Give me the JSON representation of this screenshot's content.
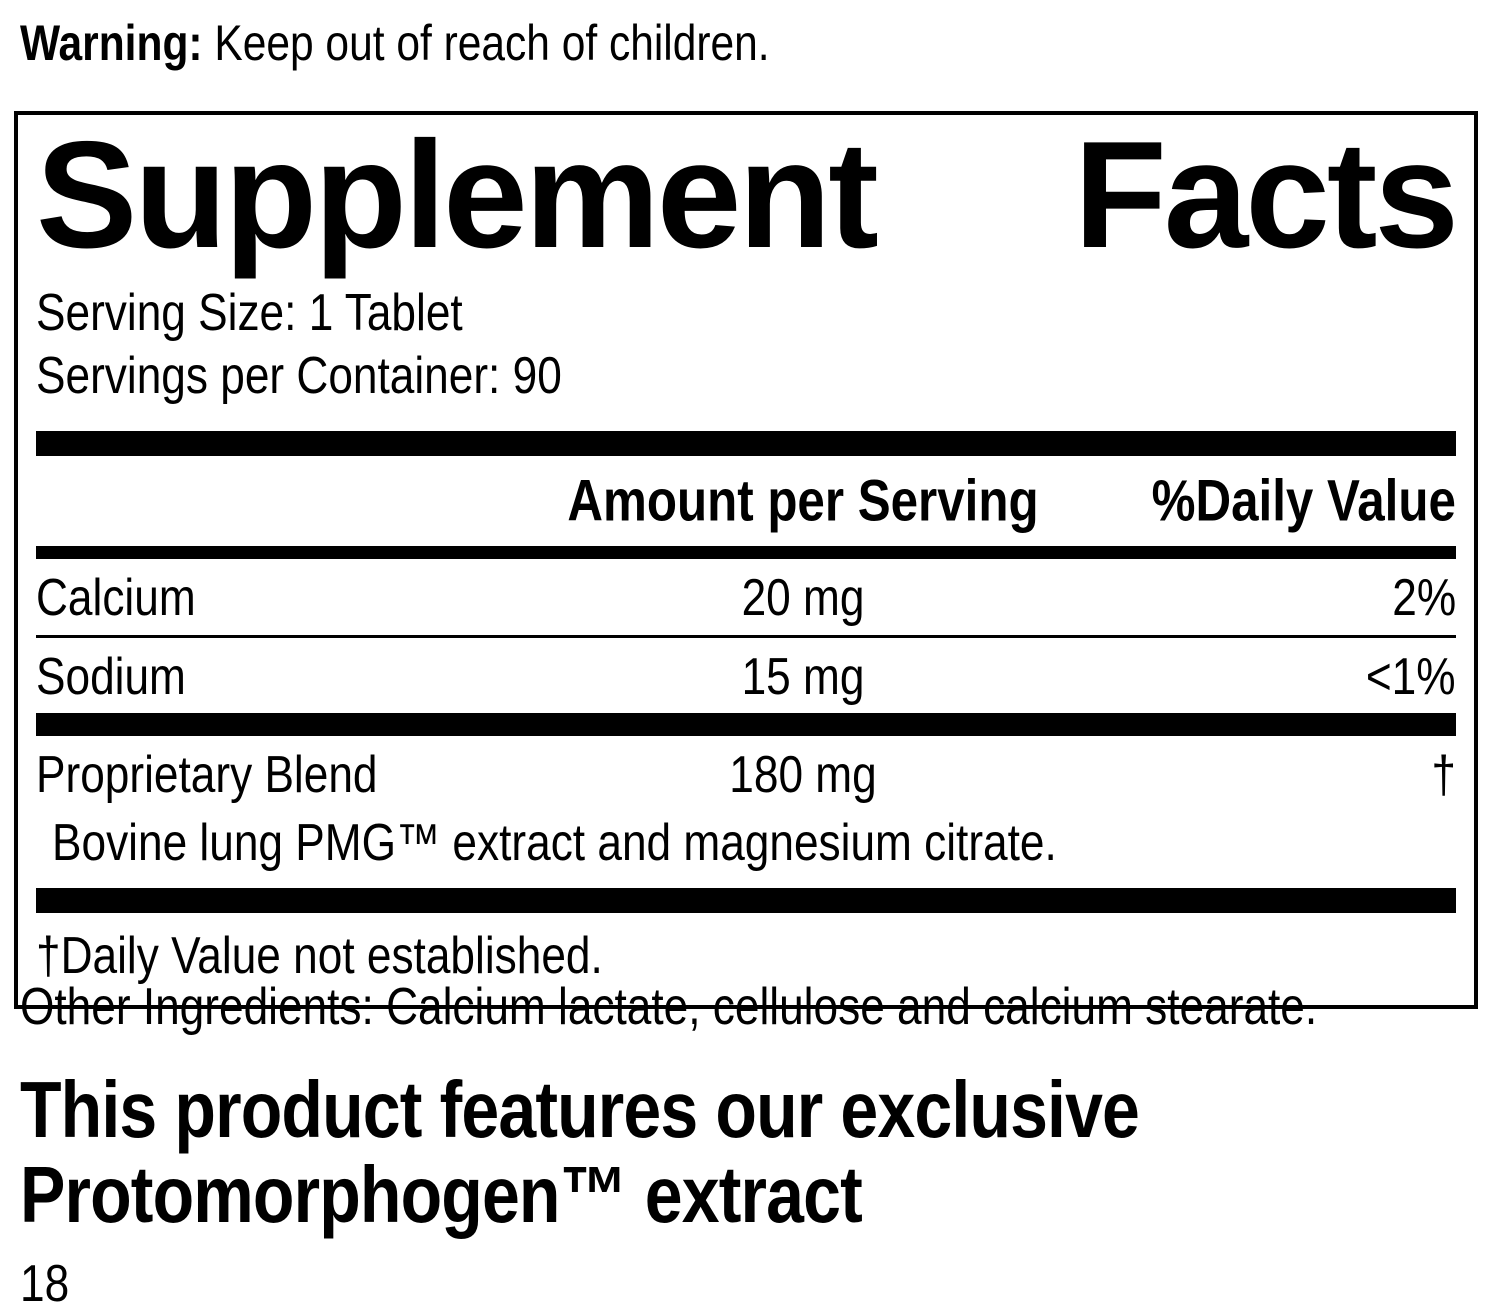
{
  "warning": {
    "label": "Warning:",
    "text": " Keep out of reach of children."
  },
  "panel": {
    "title_left": "Supplement",
    "title_right": "Facts",
    "serving_size": "Serving Size: 1 Tablet",
    "servings_per_container": "Servings per Container: 90",
    "col_amount_header": "Amount per Serving",
    "col_dv_header": "%Daily Value",
    "rows": [
      {
        "name": "Calcium",
        "amount": "20 mg",
        "dv": "2%"
      },
      {
        "name": "Sodium",
        "amount": "15 mg",
        "dv": "<1%"
      },
      {
        "name": "Proprietary Blend",
        "amount": "180 mg",
        "dv": "†"
      }
    ],
    "blend_description": "Bovine lung PMG™ extract and magnesium citrate.",
    "footnote": "†Daily Value not established."
  },
  "other_ingredients": "Other Ingredients: Calcium lactate, cellulose and calcium stearate.",
  "feature_heading": {
    "line1": "This product features our exclusive",
    "line2": "Protomorphogen™ extract"
  },
  "page_number": "18",
  "colors": {
    "text": "#000000",
    "background": "#ffffff",
    "rule": "#000000"
  }
}
